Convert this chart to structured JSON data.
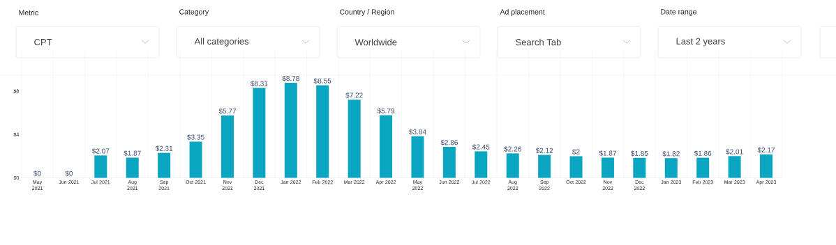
{
  "chart_data": {
    "type": "bar",
    "annotations": [
      "Metric",
      "CPT",
      "Category",
      "All categories",
      "Country / Region",
      "Worldwide",
      "Ad placement",
      "Search Tab",
      "Date range",
      "Last 2 years"
    ],
    "categories": [
      "May 2021",
      "Jun 2021",
      "Jul 2021",
      "Aug 2021",
      "Sep 2021",
      "Oct 2021",
      "Nov 2021",
      "Dec 2021",
      "Jan 2022",
      "Feb 2022",
      "Mar 2022",
      "Apr 2022",
      "May 2022",
      "Jun 2022",
      "Jul 2022",
      "Aug 2022",
      "Sep 2022",
      "Oct 2022",
      "Nov 2022",
      "Dec 2022",
      "Jan 2023",
      "Feb 2023",
      "Mar 2023",
      "Apr 2023"
    ],
    "values": [
      0,
      0,
      2.07,
      1.87,
      2.31,
      3.35,
      5.77,
      8.31,
      8.78,
      8.55,
      7.22,
      5.79,
      3.84,
      2.86,
      2.45,
      2.26,
      2.12,
      2,
      1.87,
      1.85,
      1.82,
      1.86,
      2.01,
      2.17
    ],
    "value_labels": [
      "$0",
      "$0",
      "$2.07",
      "$1.87",
      "$2.31",
      "$3.35",
      "$5.77",
      "$8.31",
      "$8.78",
      "$8.55",
      "$7.22",
      "$5.79",
      "$3.84",
      "$2.86",
      "$2.45",
      "$2.26",
      "$2.12",
      "$2",
      "$1.87",
      "$1.85",
      "$1.82",
      "$1.86",
      "$2.01",
      "$2.17"
    ],
    "color": "#0aa5c0",
    "ylim": [
      0,
      11.7
    ],
    "yticks": [
      {
        "value": 0,
        "label": "$0"
      },
      {
        "value": 4,
        "label": "$4"
      },
      {
        "value": 8,
        "label": "$8"
      }
    ],
    "grid": "x"
  }
}
